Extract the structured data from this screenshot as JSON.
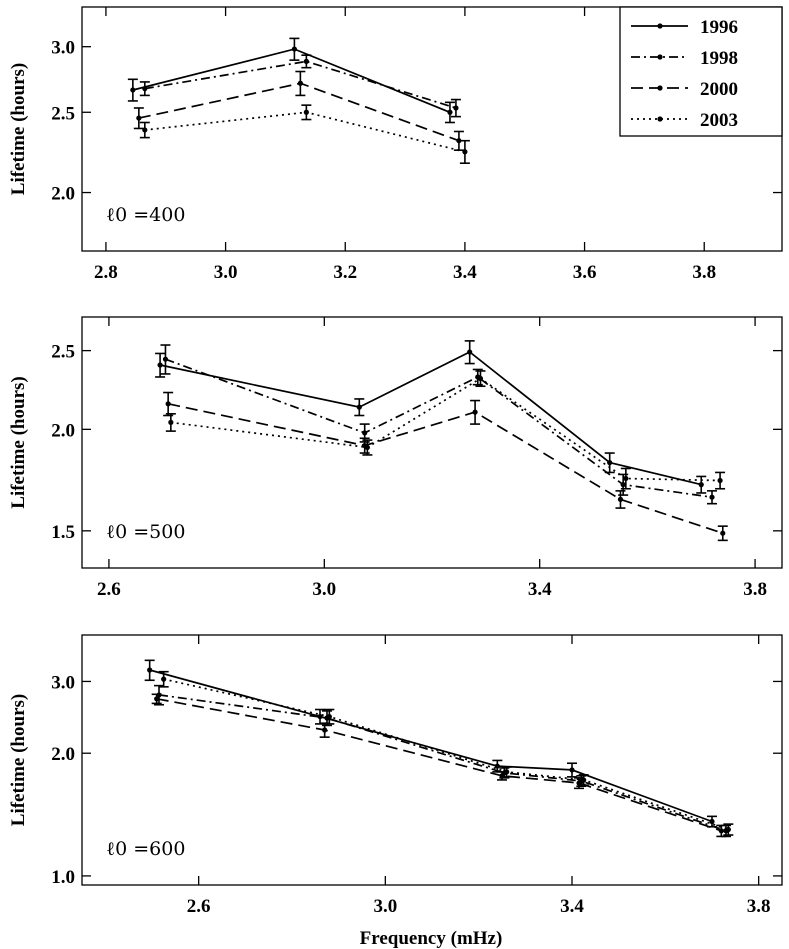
{
  "chart_data": [
    {
      "type": "line",
      "ylabel": "Lifetime (hours)",
      "xlabel": "",
      "annotation": "ℓ0 =400",
      "ylim": [
        1.7,
        3.35
      ],
      "xlim": [
        2.76,
        3.93
      ],
      "ylog": true,
      "xticks": [
        "2.8",
        "3.0",
        "3.2",
        "3.4",
        "3.6",
        "3.8"
      ],
      "yticks": [
        "2.0",
        "2.5",
        "3.0"
      ],
      "legend": true,
      "series": [
        {
          "name": "1996",
          "x": [
            2.845,
            3.115,
            3.375
          ],
          "y": [
            2.66,
            2.98,
            2.5
          ],
          "err": [
            0.08,
            0.09,
            0.07
          ]
        },
        {
          "name": "1998",
          "x": [
            2.865,
            3.135,
            3.385
          ],
          "y": [
            2.67,
            2.88,
            2.53
          ],
          "err": [
            0.05,
            0.05,
            0.06
          ]
        },
        {
          "name": "2000",
          "x": [
            2.855,
            3.125,
            3.39
          ],
          "y": [
            2.46,
            2.71,
            2.31
          ],
          "err": [
            0.07,
            0.09,
            0.06
          ]
        },
        {
          "name": "2003",
          "x": [
            2.865,
            3.135,
            3.4
          ],
          "y": [
            2.38,
            2.5,
            2.24
          ],
          "err": [
            0.05,
            0.05,
            0.07
          ]
        }
      ]
    },
    {
      "type": "line",
      "ylabel": "Lifetime (hours)",
      "xlabel": "",
      "annotation": "ℓ0 =500",
      "ylim": [
        1.35,
        2.75
      ],
      "xlim": [
        2.55,
        3.85
      ],
      "ylog": true,
      "xticks": [
        "2.6",
        "3.0",
        "3.4",
        "3.8"
      ],
      "yticks": [
        "1.5",
        "2.0",
        "2.5"
      ],
      "legend": false,
      "series": [
        {
          "name": "1996",
          "x": [
            2.695,
            3.065,
            3.27,
            3.53,
            3.7
          ],
          "y": [
            2.4,
            2.13,
            2.49,
            1.82,
            1.71
          ],
          "err": [
            0.08,
            0.05,
            0.08,
            0.05,
            0.04
          ]
        },
        {
          "name": "1998",
          "x": [
            2.705,
            3.075,
            3.285,
            3.555,
            3.72
          ],
          "y": [
            2.44,
            1.98,
            2.32,
            1.71,
            1.65
          ],
          "err": [
            0.1,
            0.05,
            0.05,
            0.05,
            0.03
          ]
        },
        {
          "name": "2000",
          "x": [
            2.71,
            3.075,
            3.28,
            3.55,
            3.74
          ],
          "y": [
            2.15,
            1.91,
            2.1,
            1.64,
            1.49
          ],
          "err": [
            0.07,
            0.04,
            0.07,
            0.04,
            0.03
          ]
        },
        {
          "name": "2003",
          "x": [
            2.715,
            3.08,
            3.29,
            3.56,
            3.735
          ],
          "y": [
            2.04,
            1.9,
            2.31,
            1.74,
            1.73
          ],
          "err": [
            0.05,
            0.04,
            0.05,
            0.05,
            0.04
          ]
        }
      ]
    },
    {
      "type": "line",
      "ylabel": "Lifetime (hours)",
      "xlabel": "Frequency (mHz)",
      "annotation": "ℓ0 =600",
      "ylim": [
        0.95,
        3.9
      ],
      "xlim": [
        2.35,
        3.85
      ],
      "ylog": true,
      "xticks": [
        "2.6",
        "3.0",
        "3.4",
        "3.8"
      ],
      "yticks": [
        "1.0",
        "2.0",
        "3.0"
      ],
      "legend": false,
      "series": [
        {
          "name": "1996",
          "x": [
            2.495,
            2.86,
            3.24,
            3.4,
            3.7
          ],
          "y": [
            3.2,
            2.46,
            1.86,
            1.82,
            1.36
          ],
          "err": [
            0.18,
            0.1,
            0.06,
            0.07,
            0.04
          ]
        },
        {
          "name": "1998",
          "x": [
            2.515,
            2.875,
            3.255,
            3.42,
            3.73
          ],
          "y": [
            2.78,
            2.44,
            1.79,
            1.71,
            1.29
          ],
          "err": [
            0.15,
            0.1,
            0.05,
            0.05,
            0.04
          ]
        },
        {
          "name": "2000",
          "x": [
            2.51,
            2.87,
            3.25,
            3.415,
            3.72
          ],
          "y": [
            2.72,
            2.28,
            1.76,
            1.69,
            1.29
          ],
          "err": [
            0.07,
            0.09,
            0.04,
            0.05,
            0.04
          ]
        },
        {
          "name": "2003",
          "x": [
            2.525,
            2.88,
            3.26,
            3.425,
            3.735
          ],
          "y": [
            3.04,
            2.46,
            1.8,
            1.72,
            1.3
          ],
          "err": [
            0.13,
            0.1,
            0.05,
            0.05,
            0.04
          ]
        }
      ]
    }
  ],
  "styles": {
    "1996": "solid",
    "1998": "dashdot",
    "2000": "dashed",
    "2003": "dotted"
  }
}
